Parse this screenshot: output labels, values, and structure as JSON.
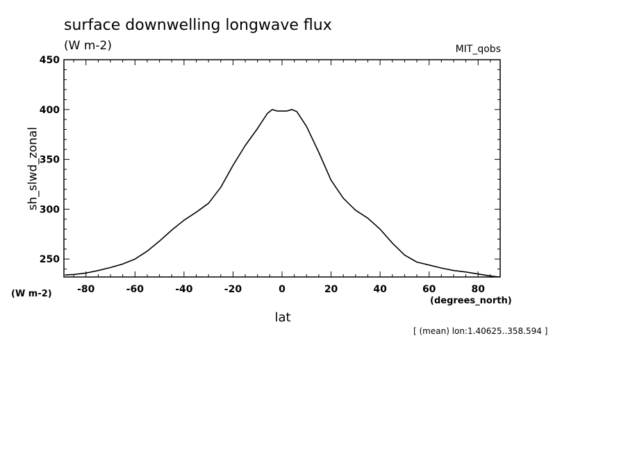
{
  "chart_data": {
    "type": "line",
    "title": "surface downwelling longwave flux",
    "units": "(W m-2)",
    "dataset": "MIT_qobs",
    "ylabel": "sh_slwd_zonal",
    "yunits": "(W m-2)",
    "xlabel": "lat",
    "xunits": "(degrees_north)",
    "note": "[ (mean) lon:1.40625..358.594 ]",
    "xlim": [
      -89,
      89
    ],
    "ylim": [
      232,
      450
    ],
    "x_ticks": [
      -80,
      -60,
      -40,
      -20,
      0,
      20,
      40,
      60,
      80
    ],
    "x_tick_labels": [
      "-80",
      "-60",
      "-40",
      "-20",
      "0",
      "20",
      "40",
      "60",
      "80"
    ],
    "y_ticks": [
      250,
      300,
      350,
      400,
      450
    ],
    "y_tick_labels": [
      "250",
      "300",
      "350",
      "400",
      "450"
    ],
    "grid": false,
    "series": [
      {
        "x": [
          -88.6,
          -85,
          -80,
          -75,
          -70,
          -65,
          -60,
          -55,
          -50,
          -45,
          -40,
          -35,
          -30,
          -25,
          -20,
          -15,
          -10,
          -6,
          -4,
          -2,
          0,
          2,
          4,
          6,
          10,
          15,
          20,
          25,
          30,
          35,
          40,
          45,
          50,
          55,
          60,
          65,
          70,
          75,
          80,
          85,
          88.6
        ],
        "y": [
          234,
          234.5,
          236,
          238.5,
          241.5,
          245,
          250,
          258,
          268,
          279,
          289,
          297,
          306,
          322,
          344,
          364,
          381,
          396,
          400,
          398.5,
          398.5,
          398.5,
          400,
          398,
          383,
          357,
          329,
          311,
          299,
          291,
          280,
          266,
          254,
          247,
          244,
          241,
          238.5,
          237,
          235,
          233,
          232
        ]
      }
    ]
  }
}
